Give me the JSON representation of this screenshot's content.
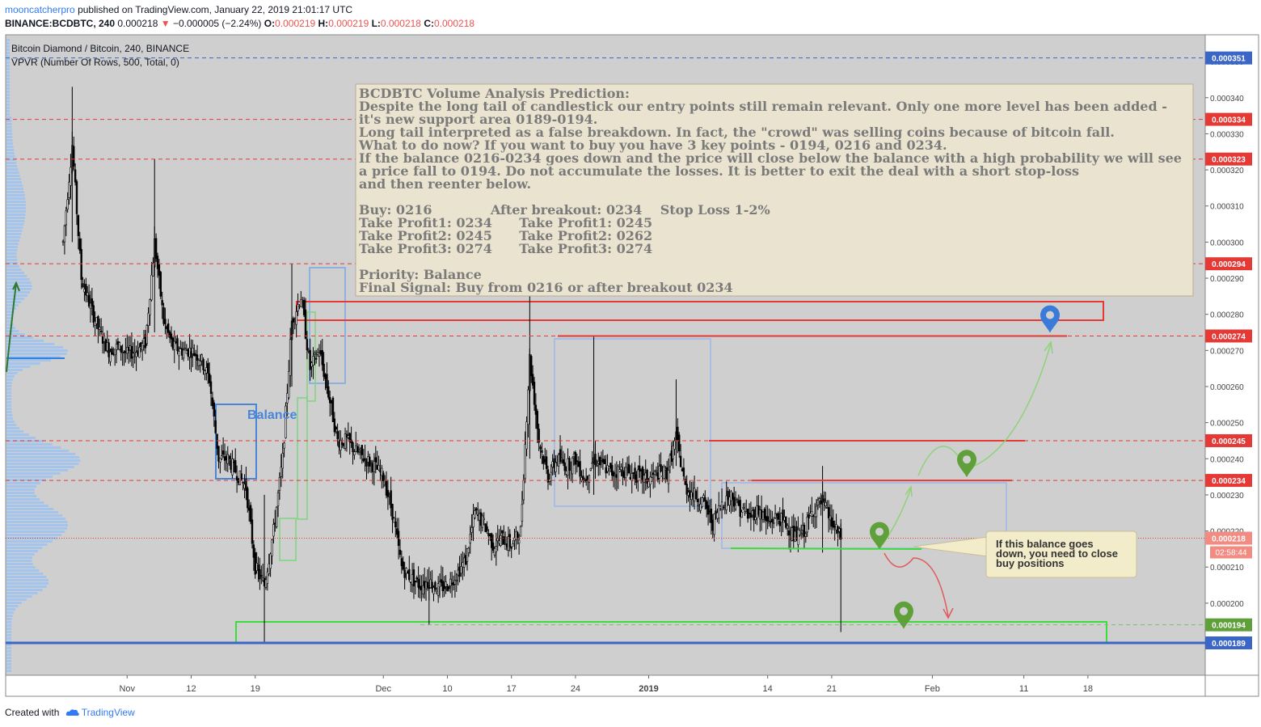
{
  "header": {
    "author": "mooncatcherpro",
    "published": "published on TradingView.com, January 22, 2019 21:01:17 UTC",
    "symbol": "BINANCE:BCDBTC, 240",
    "last": "0.000218",
    "change_arrow": "▼",
    "change": "−0.000005 (−2.24%)",
    "o_label": "O:",
    "o_value": "0.000219",
    "h_label": "H:",
    "h_value": "0.000219",
    "l_label": "L:",
    "l_value": "0.000218",
    "c_label": "C:",
    "c_value": "0.000218"
  },
  "legend": {
    "title": "Bitcoin Diamond / Bitcoin, 240, BINANCE",
    "indicator": "VPVR (Number Of Rows, 500, Total, 0)"
  },
  "footer": {
    "created_with": "Created with",
    "brand": "TradingView"
  },
  "annotation": {
    "lines": [
      "BCDBTC Volume Analysis Prediction:",
      "Despite the long tail of candlestick our entry points still remain relevant. Only one more level has been added -",
      "it's new support area 0189-0194.",
      "Long tail interpreted as a false breakdown. In fact, the \"crowd\" was selling coins because of bitcoin fall.",
      "What to do now? If you want to buy you have 3 key points - 0194, 0216 and 0234.",
      "If the balance 0216-0234 goes down and the price will close below the balance with a high probability we will see",
      "a price fall to 0194. Do not accumulate the losses. It is better to exit the deal with a short stop-loss",
      "and then reenter below.",
      "",
      "Buy: 0216             After breakout: 0234    Stop Loss 1-2%",
      "Take Profit1: 0234      Take Profit1: 0245",
      "Take Profit2: 0245      Take Profit2: 0262",
      "Take Profit3: 0274      Take Profit3: 0274",
      "",
      "Priority: Balance",
      "Final Signal: Buy from 0216 or after breakout 0234"
    ]
  },
  "balance_label": "Balance",
  "callout": [
    "If this balance goes",
    "down, you need to close",
    "buy positions"
  ],
  "colors": {
    "background": "#cfcfcf",
    "candle": "#000000",
    "level_red": "#e53935",
    "level_blue": "#3a66c8",
    "zone_green": "#3cdc3c",
    "volume_profile": "#9fc3ee",
    "marker_green": "#5fa03a",
    "marker_blue": "#3a7ad8",
    "note_bg": "#e9e3cf"
  },
  "chart_data": {
    "type": "candlestick",
    "title": "Bitcoin Diamond / Bitcoin, 240, BINANCE",
    "ylim": [
      0.000186,
      0.000352
    ],
    "y_ticks": [
      "0.000200",
      "0.000210",
      "0.000220",
      "0.000230",
      "0.000240",
      "0.000250",
      "0.000260",
      "0.000270",
      "0.000280",
      "0.000290",
      "0.000300",
      "0.000310",
      "0.000320",
      "0.000330",
      "0.000340",
      "0.000350"
    ],
    "x_ticks": [
      "Nov",
      "12",
      "19",
      "Dec",
      "10",
      "17",
      "24",
      "2019",
      "14",
      "21",
      "Feb",
      "11",
      "18"
    ],
    "current_price": "0.000218",
    "countdown": "02:58:44",
    "price_labels": [
      {
        "label": "0.000351",
        "color": "#3a66c8"
      },
      {
        "label": "0.000334",
        "color": "#e53935"
      },
      {
        "label": "0.000323",
        "color": "#e53935"
      },
      {
        "label": "0.000294",
        "color": "#e53935"
      },
      {
        "label": "0.000274",
        "color": "#e53935"
      },
      {
        "label": "0.000245",
        "color": "#e53935"
      },
      {
        "label": "0.000234",
        "color": "#e53935"
      },
      {
        "label": "0.000194",
        "color": "#5fa03a"
      },
      {
        "label": "0.000189",
        "color": "#3a66c8"
      }
    ],
    "price_path": [
      [
        "Oct 29",
        0.0003
      ],
      [
        "Oct 30",
        0.000327
      ],
      [
        "Oct 31",
        0.00029
      ],
      [
        "Nov 1",
        0.000282
      ],
      [
        "Nov 2",
        0.000275
      ],
      [
        "Nov 3",
        0.00027
      ],
      [
        "Nov 4",
        0.000271
      ],
      [
        "Nov 5",
        0.000269
      ],
      [
        "Nov 6",
        0.00027
      ],
      [
        "Nov 7",
        0.000272
      ],
      [
        "Nov 8",
        0.0003
      ],
      [
        "Nov 9",
        0.000278
      ],
      [
        "Nov 10",
        0.000271
      ],
      [
        "Nov 11",
        0.00027
      ],
      [
        "Nov 12",
        0.00027
      ],
      [
        "Nov 13",
        0.000268
      ],
      [
        "Nov 14",
        0.000262
      ],
      [
        "Nov 15",
        0.00024
      ],
      [
        "Nov 16",
        0.00024
      ],
      [
        "Nov 17",
        0.000236
      ],
      [
        "Nov 18",
        0.000232
      ],
      [
        "Nov 19",
        0.00021
      ],
      [
        "Nov 20",
        0.000205
      ],
      [
        "Nov 21",
        0.00022
      ],
      [
        "Nov 22",
        0.00024
      ],
      [
        "Nov 23",
        0.000278
      ],
      [
        "Nov 24",
        0.000285
      ],
      [
        "Nov 25",
        0.000265
      ],
      [
        "Nov 26",
        0.00027
      ],
      [
        "Nov 27",
        0.000258
      ],
      [
        "Nov 28",
        0.000245
      ],
      [
        "Nov 29",
        0.000245
      ],
      [
        "Nov 30",
        0.000242
      ],
      [
        "Dec 1",
        0.00024
      ],
      [
        "Dec 2",
        0.000238
      ],
      [
        "Dec 3",
        0.000235
      ],
      [
        "Dec 4",
        0.000225
      ],
      [
        "Dec 5",
        0.00021
      ],
      [
        "Dec 6",
        0.000207
      ],
      [
        "Dec 7",
        0.000205
      ],
      [
        "Dec 8",
        0.000206
      ],
      [
        "Dec 9",
        0.000204
      ],
      [
        "Dec 10",
        0.000205
      ],
      [
        "Dec 11",
        0.000208
      ],
      [
        "Dec 12",
        0.000212
      ],
      [
        "Dec 13",
        0.000225
      ],
      [
        "Dec 14",
        0.000222
      ],
      [
        "Dec 15",
        0.000216
      ],
      [
        "Dec 16",
        0.000218
      ],
      [
        "Dec 17",
        0.000216
      ],
      [
        "Dec 18",
        0.00022
      ],
      [
        "Dec 19",
        0.000268
      ],
      [
        "Dec 20",
        0.000245
      ],
      [
        "Dec 21",
        0.000235
      ],
      [
        "Dec 22",
        0.00024
      ],
      [
        "Dec 23",
        0.000238
      ],
      [
        "Dec 24",
        0.00024
      ],
      [
        "Dec 25",
        0.000234
      ],
      [
        "Dec 26",
        0.00024
      ],
      [
        "Dec 27",
        0.000238
      ],
      [
        "Dec 28",
        0.000236
      ],
      [
        "Dec 29",
        0.000237
      ],
      [
        "Dec 30",
        0.000236
      ],
      [
        "Dec 31",
        0.000235
      ],
      [
        "Jan 1",
        0.000234
      ],
      [
        "Jan 2",
        0.000236
      ],
      [
        "Jan 3",
        0.000236
      ],
      [
        "Jan 4",
        0.000246
      ],
      [
        "Jan 5",
        0.000232
      ],
      [
        "Jan 6",
        0.00023
      ],
      [
        "Jan 7",
        0.000228
      ],
      [
        "Jan 8",
        0.000222
      ],
      [
        "Jan 9",
        0.000228
      ],
      [
        "Jan 10",
        0.00023
      ],
      [
        "Jan 11",
        0.000226
      ],
      [
        "Jan 12",
        0.000224
      ],
      [
        "Jan 13",
        0.000226
      ],
      [
        "Jan 14",
        0.000222
      ],
      [
        "Jan 15",
        0.000224
      ],
      [
        "Jan 16",
        0.000222
      ],
      [
        "Jan 17",
        0.000218
      ],
      [
        "Jan 18",
        0.00022
      ],
      [
        "Jan 19",
        0.000226
      ],
      [
        "Jan 20",
        0.000228
      ],
      [
        "Jan 21",
        0.000222
      ],
      [
        "Jan 22",
        0.000218
      ]
    ],
    "levels": [
      {
        "price": 0.000351,
        "color": "blue",
        "style": "dashed"
      },
      {
        "price": 0.000334,
        "color": "red",
        "style": "dashed"
      },
      {
        "price": 0.000323,
        "color": "red",
        "style": "dashed"
      },
      {
        "price": 0.000294,
        "color": "red",
        "style": "dashed"
      },
      {
        "price": 0.000274,
        "color": "red",
        "style": "dashed"
      },
      {
        "price": 0.000245,
        "color": "red",
        "style": "dashed"
      },
      {
        "price": 0.000234,
        "color": "red",
        "style": "dashed"
      },
      {
        "price": 0.000218,
        "color": "red",
        "style": "dotted"
      },
      {
        "price": 0.000194,
        "color": "green",
        "style": "dashed"
      },
      {
        "price": 0.000189,
        "color": "blue",
        "style": "solid"
      }
    ],
    "zones": [
      {
        "from": 0.000279,
        "to": 0.000284,
        "color": "red"
      },
      {
        "from": 0.000189,
        "to": 0.000195,
        "color": "green"
      }
    ],
    "targets": [
      {
        "name": "buy-0216",
        "price": 0.000218,
        "color": "green"
      },
      {
        "name": "breakout-0234",
        "price": 0.000238,
        "color": "green"
      },
      {
        "name": "support-0194",
        "price": 0.000196,
        "color": "green"
      },
      {
        "name": "target-0274",
        "price": 0.000278,
        "color": "blue"
      }
    ]
  }
}
